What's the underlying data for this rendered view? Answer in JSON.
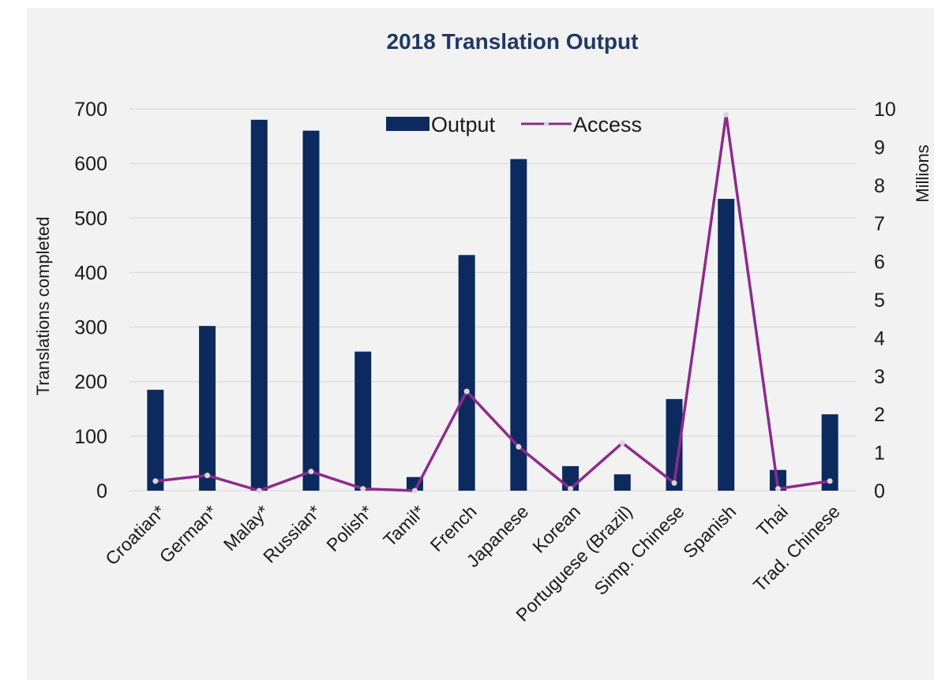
{
  "chart_data": {
    "type": "bar+line",
    "title": "2018 Translation Output",
    "categories": [
      "Croatian*",
      "German*",
      "Malay*",
      "Russian*",
      "Polish*",
      "Tamil*",
      "French",
      "Japanese",
      "Korean",
      "Portuguese (Brazil)",
      "Simp. Chinese",
      "Spanish",
      "Thai",
      "Trad. Chinese"
    ],
    "series": [
      {
        "name": "Output",
        "type": "bar",
        "axis": "left",
        "values": [
          185,
          302,
          680,
          660,
          255,
          25,
          432,
          608,
          45,
          30,
          168,
          535,
          38,
          140
        ]
      },
      {
        "name": "Access",
        "type": "line",
        "axis": "right",
        "values": [
          0.25,
          0.4,
          0.0,
          0.5,
          0.05,
          0.0,
          2.6,
          1.15,
          0.05,
          1.25,
          0.2,
          9.85,
          0.05,
          0.25
        ]
      }
    ],
    "ylabel_left": "Translations completed",
    "ylabel_right": "Millions",
    "ylim_left": [
      0,
      700
    ],
    "ylim_right": [
      0,
      10
    ],
    "yticks_left": [
      "0",
      "100",
      "200",
      "300",
      "400",
      "500",
      "600",
      "700"
    ],
    "yticks_right": [
      "0",
      "1",
      "2",
      "3",
      "4",
      "5",
      "6",
      "7",
      "8",
      "9",
      "10"
    ],
    "grid": true,
    "legend": "top-center",
    "colors": {
      "bar": "#0d2a5e",
      "line": "#8e2a8e",
      "marker": "#d9d9d9",
      "title": "#1f3864",
      "grid": "#d4d4d4",
      "background": "#f2f2f2"
    }
  }
}
